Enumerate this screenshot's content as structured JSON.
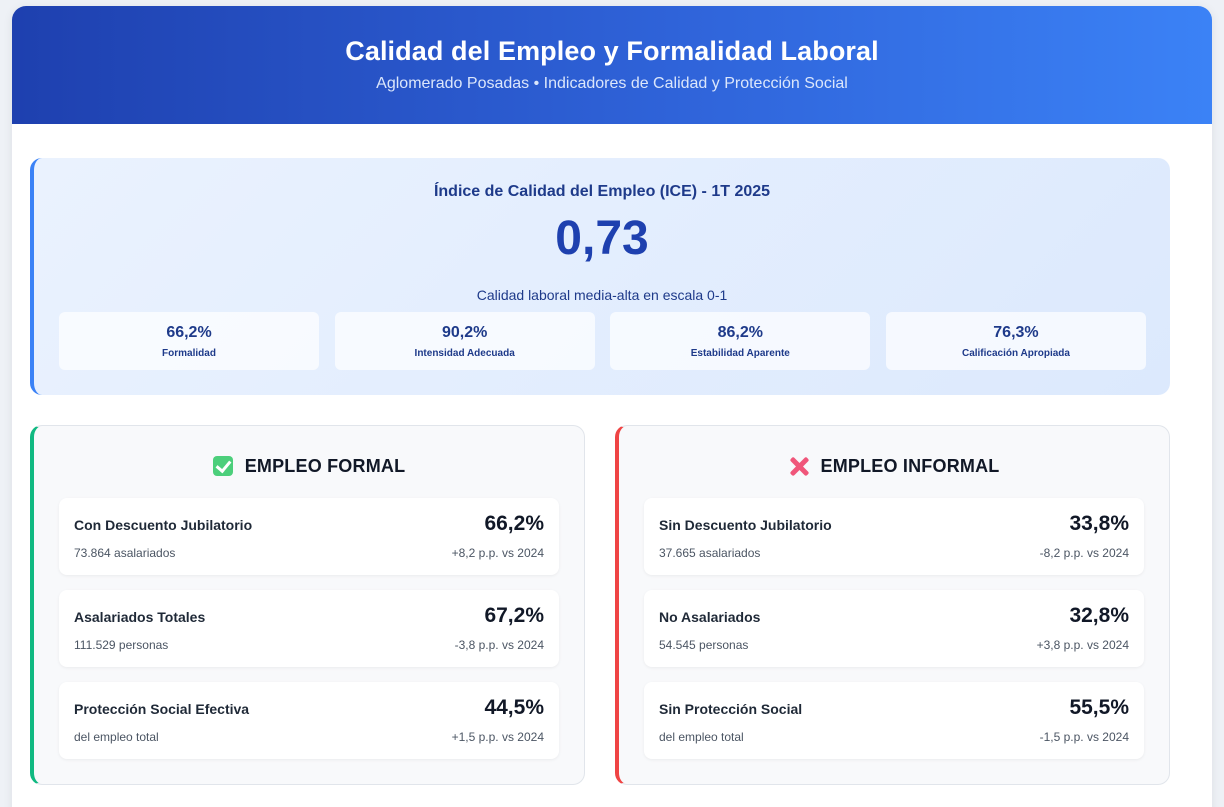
{
  "header": {
    "title": "Calidad del Empleo y Formalidad Laboral",
    "subtitle": "Aglomerado Posadas • Indicadores de Calidad y Protección Social"
  },
  "ice": {
    "title": "Índice de Calidad del Empleo (ICE) - 1T 2025",
    "value": "0,73",
    "description": "Calidad laboral media-alta en escala 0-1",
    "metrics": [
      {
        "value": "66,2%",
        "label": "Formalidad"
      },
      {
        "value": "90,2%",
        "label": "Intensidad Adecuada"
      },
      {
        "value": "86,2%",
        "label": "Estabilidad Aparente"
      },
      {
        "value": "76,3%",
        "label": "Calificación Apropiada"
      }
    ]
  },
  "formal": {
    "title": "EMPLEO FORMAL",
    "icon": "check-icon",
    "accent": "#10b981",
    "items": [
      {
        "name": "Con Descuento Jubilatorio",
        "value": "66,2%",
        "sub": "73.864 asalariados",
        "change": "+8,2 p.p. vs 2024"
      },
      {
        "name": "Asalariados Totales",
        "value": "67,2%",
        "sub": "111.529 personas",
        "change": "-3,8 p.p. vs 2024"
      },
      {
        "name": "Protección Social Efectiva",
        "value": "44,5%",
        "sub": "del empleo total",
        "change": "+1,5 p.p. vs 2024"
      }
    ]
  },
  "informal": {
    "title": "EMPLEO INFORMAL",
    "icon": "cross-icon",
    "accent": "#ef4444",
    "items": [
      {
        "name": "Sin Descuento Jubilatorio",
        "value": "33,8%",
        "sub": "37.665 asalariados",
        "change": "-8,2 p.p. vs 2024"
      },
      {
        "name": "No Asalariados",
        "value": "32,8%",
        "sub": "54.545 personas",
        "change": "+3,8 p.p. vs 2024"
      },
      {
        "name": "Sin Protección Social",
        "value": "55,5%",
        "sub": "del empleo total",
        "change": "-1,5 p.p. vs 2024"
      }
    ]
  }
}
